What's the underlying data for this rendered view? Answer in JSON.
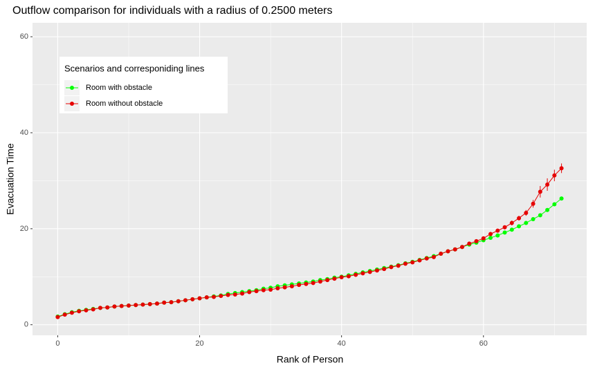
{
  "chart_data": {
    "type": "line",
    "title": "Outflow comparison for individuals with a radius of 0.2500 meters",
    "x_label": "Rank of Person",
    "y_label": "Evacuation Time",
    "legend_title": "Scenarios and corresponiding lines",
    "legend_position": "top-left",
    "x": [
      0,
      1,
      2,
      3,
      4,
      5,
      6,
      7,
      8,
      9,
      10,
      11,
      12,
      13,
      14,
      15,
      16,
      17,
      18,
      19,
      20,
      21,
      22,
      23,
      24,
      25,
      26,
      27,
      28,
      29,
      30,
      31,
      32,
      33,
      34,
      35,
      36,
      37,
      38,
      39,
      40,
      41,
      42,
      43,
      44,
      45,
      46,
      47,
      48,
      49,
      50,
      51,
      52,
      53,
      54,
      55,
      56,
      57,
      58,
      59,
      60,
      61,
      62,
      63,
      64,
      65,
      66,
      67,
      68,
      69,
      70,
      71
    ],
    "series": [
      {
        "name": "Room with obstacle",
        "color": "#00ff00",
        "values": [
          1.7,
          2.2,
          2.6,
          2.9,
          3.1,
          3.3,
          3.5,
          3.6,
          3.8,
          3.9,
          4.0,
          4.1,
          4.2,
          4.3,
          4.4,
          4.6,
          4.7,
          4.9,
          5.1,
          5.3,
          5.5,
          5.7,
          5.9,
          6.1,
          6.4,
          6.6,
          6.8,
          7.0,
          7.2,
          7.5,
          7.7,
          8.0,
          8.2,
          8.4,
          8.6,
          8.8,
          9.0,
          9.3,
          9.5,
          9.8,
          10.0,
          10.3,
          10.6,
          10.9,
          11.2,
          11.5,
          11.8,
          12.1,
          12.4,
          12.8,
          13.1,
          13.5,
          13.9,
          14.3,
          14.8,
          15.3,
          15.7,
          16.2,
          16.7,
          17.1,
          17.6,
          18.1,
          18.6,
          19.2,
          19.8,
          20.5,
          21.2,
          22.0,
          22.8,
          23.9,
          25.1,
          26.3
        ],
        "errors": [
          0.2,
          0.2,
          0.2,
          0.2,
          0.2,
          0.2,
          0.2,
          0.2,
          0.2,
          0.2,
          0.2,
          0.2,
          0.2,
          0.2,
          0.2,
          0.2,
          0.2,
          0.2,
          0.2,
          0.2,
          0.2,
          0.2,
          0.2,
          0.2,
          0.2,
          0.2,
          0.2,
          0.2,
          0.2,
          0.2,
          0.2,
          0.2,
          0.2,
          0.2,
          0.2,
          0.2,
          0.2,
          0.2,
          0.2,
          0.2,
          0.2,
          0.2,
          0.2,
          0.2,
          0.2,
          0.2,
          0.2,
          0.2,
          0.2,
          0.2,
          0.2,
          0.2,
          0.2,
          0.2,
          0.2,
          0.2,
          0.2,
          0.2,
          0.2,
          0.2,
          0.2,
          0.2,
          0.2,
          0.2,
          0.2,
          0.2,
          0.2,
          0.2,
          0.2,
          0.2,
          0.3,
          0.3
        ]
      },
      {
        "name": "Room without obstacle",
        "color": "#e60000",
        "values": [
          1.6,
          2.1,
          2.5,
          2.8,
          3.0,
          3.2,
          3.5,
          3.6,
          3.8,
          3.9,
          4.0,
          4.1,
          4.2,
          4.3,
          4.4,
          4.6,
          4.7,
          4.9,
          5.1,
          5.3,
          5.5,
          5.7,
          5.8,
          6.0,
          6.2,
          6.3,
          6.5,
          6.8,
          7.0,
          7.2,
          7.3,
          7.6,
          7.8,
          8.0,
          8.3,
          8.5,
          8.7,
          9.0,
          9.3,
          9.6,
          9.9,
          10.1,
          10.4,
          10.7,
          11.0,
          11.3,
          11.6,
          12.0,
          12.3,
          12.7,
          13.0,
          13.4,
          13.8,
          14.1,
          14.8,
          15.3,
          15.7,
          16.2,
          16.9,
          17.4,
          18.0,
          18.9,
          19.6,
          20.3,
          21.2,
          22.2,
          23.3,
          25.2,
          27.7,
          29.2,
          31.1,
          32.6
        ],
        "errors": [
          0.3,
          0.3,
          0.3,
          0.3,
          0.3,
          0.3,
          0.3,
          0.3,
          0.3,
          0.3,
          0.3,
          0.3,
          0.3,
          0.3,
          0.3,
          0.3,
          0.3,
          0.3,
          0.3,
          0.3,
          0.3,
          0.3,
          0.3,
          0.3,
          0.3,
          0.3,
          0.3,
          0.3,
          0.3,
          0.3,
          0.3,
          0.3,
          0.3,
          0.3,
          0.3,
          0.3,
          0.3,
          0.3,
          0.3,
          0.3,
          0.3,
          0.3,
          0.3,
          0.3,
          0.3,
          0.3,
          0.3,
          0.3,
          0.3,
          0.3,
          0.3,
          0.3,
          0.3,
          0.3,
          0.3,
          0.3,
          0.3,
          0.3,
          0.3,
          0.3,
          0.4,
          0.4,
          0.4,
          0.4,
          0.5,
          0.5,
          0.6,
          0.8,
          1.2,
          1.3,
          1.2,
          1.0
        ]
      }
    ],
    "xlim": [
      -3.55,
      74.55
    ],
    "ylim": [
      -2.2,
      62.9
    ],
    "xticks": [
      0,
      20,
      40,
      60
    ],
    "yticks": [
      0,
      20,
      40,
      60
    ],
    "grid": true
  }
}
